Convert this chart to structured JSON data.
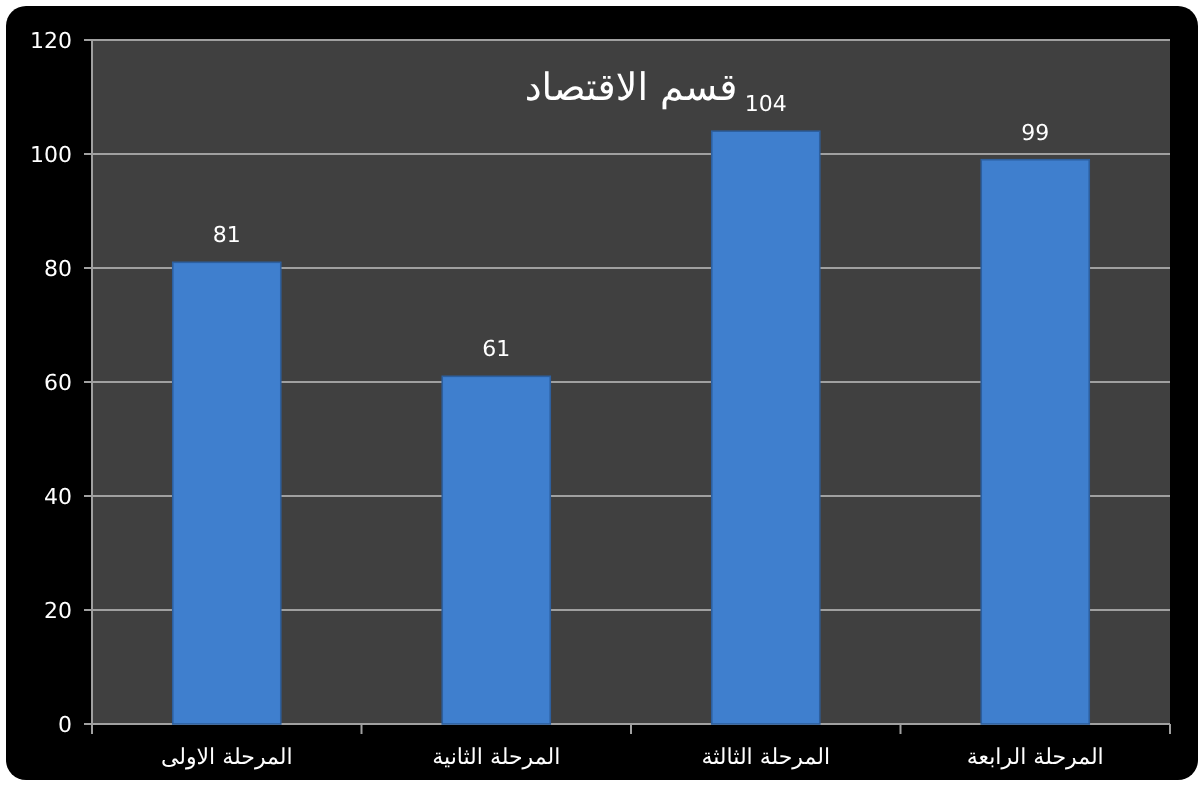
{
  "chart_data": {
    "type": "bar",
    "title": "قسم الاقتصاد",
    "categories": [
      "المرحلة الاولى",
      "المرحلة الثانية",
      "المرحلة الثالثة",
      "المرحلة الرابعة"
    ],
    "values": [
      81,
      61,
      104,
      99
    ],
    "color": "#3f7fce",
    "ylim": [
      0,
      120
    ],
    "yticks": [
      0,
      20,
      40,
      60,
      80,
      100,
      120
    ],
    "grid": "y",
    "data_labels": true
  }
}
